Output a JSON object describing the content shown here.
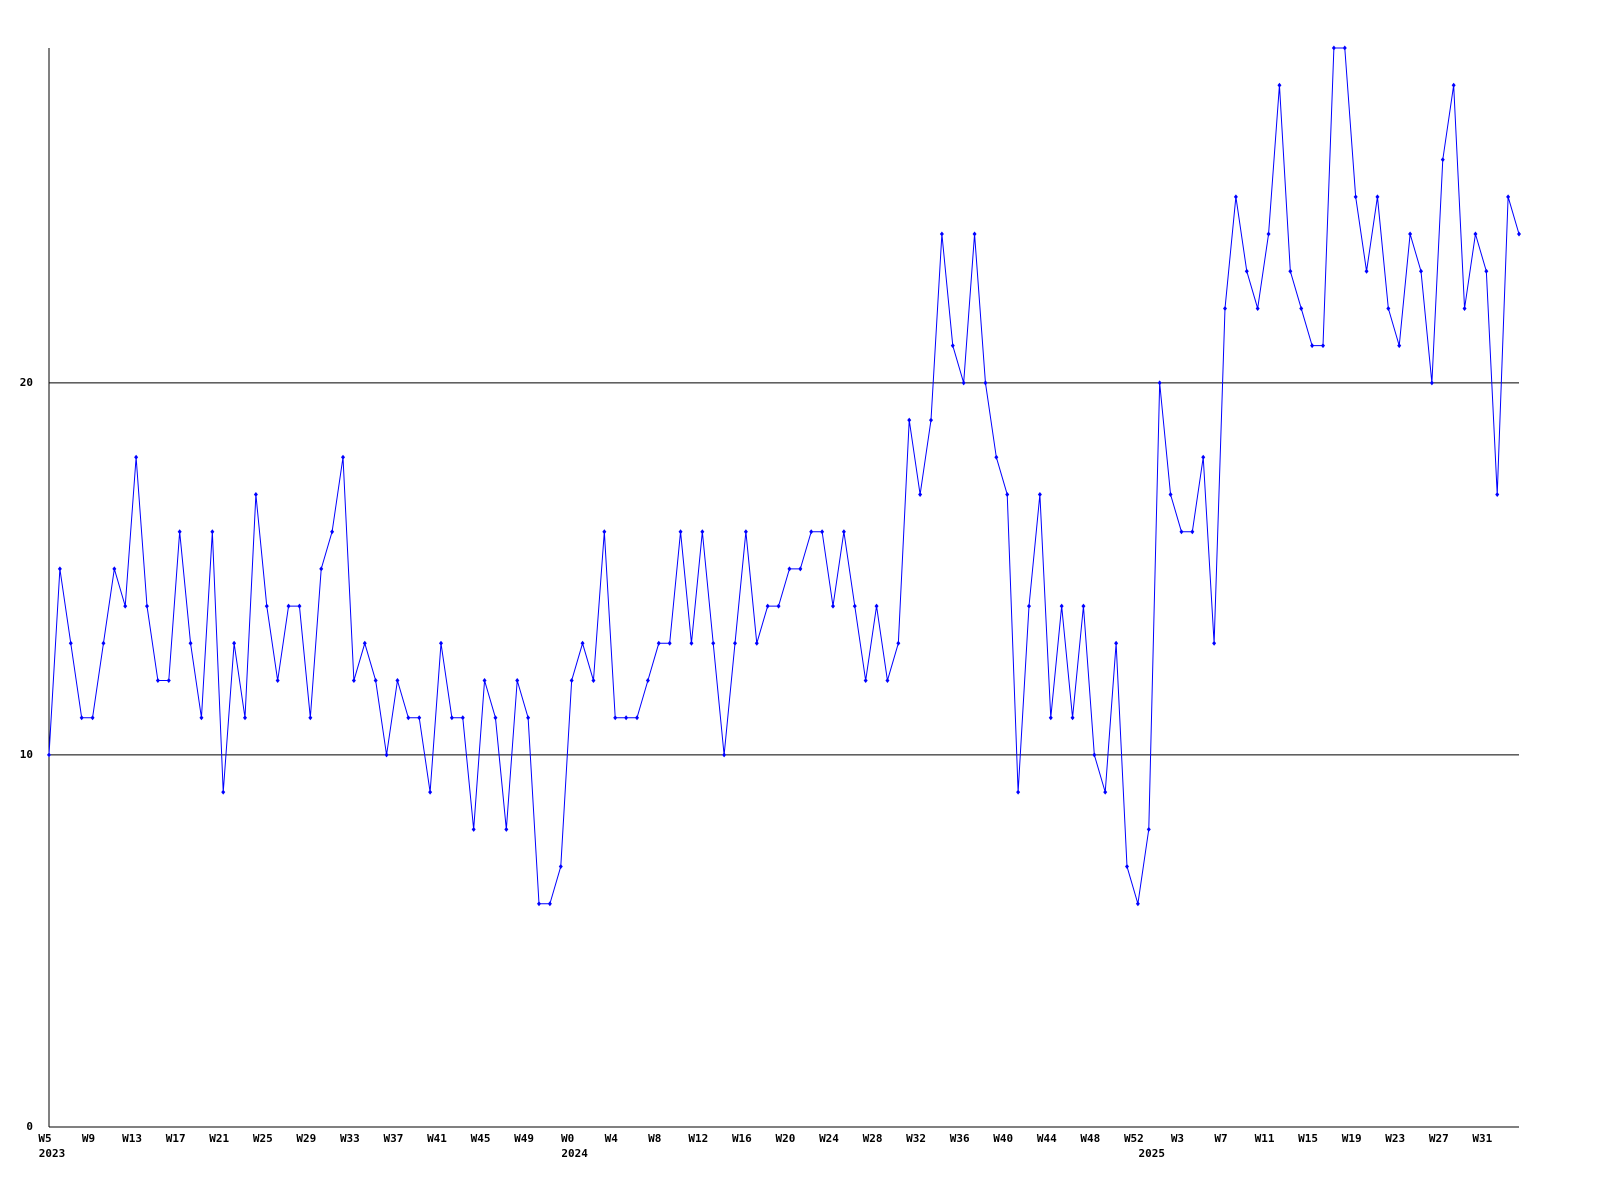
{
  "chart_data": {
    "type": "line",
    "categories": [
      "W5",
      null,
      null,
      null,
      "W9",
      null,
      null,
      null,
      "W13",
      null,
      null,
      null,
      "W17",
      null,
      null,
      null,
      "W21",
      null,
      null,
      null,
      "W25",
      null,
      null,
      null,
      "W29",
      null,
      null,
      null,
      "W33",
      null,
      null,
      null,
      "W37",
      null,
      null,
      null,
      "W41",
      null,
      null,
      null,
      "W45",
      null,
      null,
      null,
      "W49",
      null,
      null,
      null,
      "W0",
      null,
      null,
      null,
      "W4",
      null,
      null,
      null,
      "W8",
      null,
      null,
      null,
      "W12",
      null,
      null,
      null,
      "W16",
      null,
      null,
      null,
      "W20",
      null,
      null,
      null,
      "W24",
      null,
      null,
      null,
      "W28",
      null,
      null,
      null,
      "W32",
      null,
      null,
      null,
      "W36",
      null,
      null,
      null,
      "W40",
      null,
      null,
      null,
      "W44",
      null,
      null,
      null,
      "W48",
      null,
      null,
      null,
      "W52",
      null,
      null,
      null,
      "W3",
      null,
      null,
      null,
      "W7",
      null,
      null,
      null,
      "W11",
      null,
      null,
      null,
      "W15",
      null,
      null,
      null,
      "W19",
      null,
      null,
      null,
      "W23",
      null,
      null,
      null,
      "W27",
      null,
      null,
      null,
      "W31",
      null,
      null,
      null
    ],
    "category_years": [
      "2023",
      null,
      null,
      null,
      null,
      null,
      null,
      null,
      null,
      null,
      null,
      null,
      null,
      null,
      null,
      null,
      null,
      null,
      null,
      null,
      null,
      null,
      null,
      null,
      null,
      null,
      null,
      null,
      null,
      null,
      null,
      null,
      null,
      null,
      null,
      null,
      null,
      null,
      null,
      null,
      null,
      null,
      null,
      null,
      null,
      null,
      null,
      null,
      "2024",
      null,
      null,
      null,
      null,
      null,
      null,
      null,
      null,
      null,
      null,
      null,
      null,
      null,
      null,
      null,
      null,
      null,
      null,
      null,
      null,
      null,
      null,
      null,
      null,
      null,
      null,
      null,
      null,
      null,
      null,
      null,
      null,
      null,
      null,
      null,
      null,
      null,
      null,
      null,
      null,
      null,
      null,
      null,
      null,
      null,
      null,
      null,
      null,
      null,
      null,
      null,
      null,
      "2025",
      null,
      null,
      null,
      null,
      null,
      null,
      null,
      null,
      null,
      null,
      null,
      null,
      null,
      null,
      null,
      null,
      null,
      null,
      null,
      null,
      null,
      null,
      null,
      null,
      null,
      null,
      null,
      null,
      null,
      null,
      null,
      null,
      null
    ],
    "series": [
      {
        "color": "#0000ff",
        "values": [
          10,
          15,
          13,
          11,
          11,
          13,
          15,
          14,
          18,
          14,
          12,
          12,
          16,
          13,
          11,
          16,
          9,
          13,
          11,
          17,
          14,
          12,
          14,
          14,
          11,
          15,
          16,
          18,
          12,
          13,
          12,
          10,
          12,
          11,
          11,
          9,
          13,
          11,
          11,
          8,
          12,
          11,
          8,
          12,
          11,
          6,
          6,
          7,
          12,
          13,
          12,
          16,
          11,
          11,
          11,
          12,
          13,
          13,
          16,
          13,
          16,
          13,
          10,
          13,
          16,
          13,
          14,
          14,
          15,
          15,
          16,
          16,
          14,
          16,
          14,
          12,
          14,
          12,
          13,
          19,
          17,
          19,
          24,
          21,
          20,
          24,
          20,
          18,
          17,
          9,
          14,
          17,
          11,
          14,
          11,
          14,
          10,
          9,
          13,
          7,
          6,
          8,
          20,
          17,
          16,
          16,
          18,
          13,
          22,
          25,
          23,
          22,
          24,
          28,
          23,
          22,
          21,
          21,
          29,
          29,
          25,
          23,
          25,
          22,
          21,
          24,
          23,
          20,
          26,
          28,
          22,
          24,
          23,
          17,
          25,
          24
        ]
      }
    ],
    "ylim": [
      0,
      29
    ],
    "yticks": [
      0,
      10,
      20
    ],
    "grid": true
  }
}
